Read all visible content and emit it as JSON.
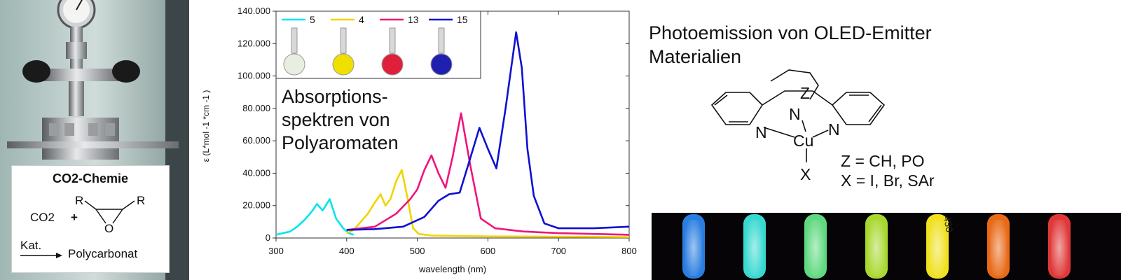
{
  "co2_panel": {
    "title": "CO2-Chemie",
    "reactant": "CO2",
    "plus": "+",
    "substituent_left": "R",
    "substituent_right": "R",
    "ring_atom": "O",
    "catalyst": "Kat.",
    "product": "Polycarbonat"
  },
  "absorption_note": "Absorptions-spektren von Polyaromaten",
  "oled": {
    "title": "Photoemission von OLED-Emitter Materialien",
    "atoms": {
      "n_left": "N",
      "n_center": "N",
      "n_right": "N",
      "metal": "Cu",
      "z": "Z",
      "x": "X"
    },
    "definitions": [
      "Z = CH, PO",
      "X = I, Br, SAr"
    ],
    "glow_colors": [
      "#2a7de0",
      "#38d8d0",
      "#60d880",
      "#a8d830",
      "#f0e020",
      "#e86a18",
      "#e03838"
    ],
    "tube_label": "430"
  },
  "chart_data": {
    "type": "line",
    "xlabel": "wavelength (nm)",
    "ylabel": "ε (L*mol -1 *cm -1 )",
    "xlim": [
      300,
      800
    ],
    "ylim": [
      0,
      140000
    ],
    "x_ticks": [
      "300",
      "400",
      "500",
      "600",
      "700",
      "800"
    ],
    "y_ticks": [
      "0",
      "20.000",
      "40.000",
      "60.000",
      "80.000",
      "100.000",
      "120.000",
      "140.000"
    ],
    "legend_position": "top-left inset",
    "series": [
      {
        "name": "5",
        "color": "#00e5f0",
        "x": [
          300,
          320,
          330,
          340,
          350,
          358,
          366,
          376,
          385,
          395,
          403,
          410
        ],
        "y": [
          2000,
          4000,
          7000,
          11000,
          16000,
          21000,
          17000,
          24000,
          12000,
          6000,
          3000,
          2000
        ]
      },
      {
        "name": "4",
        "color": "#f0d400",
        "x": [
          400,
          410,
          420,
          430,
          440,
          448,
          455,
          462,
          470,
          478,
          486,
          494,
          502,
          520,
          600,
          700,
          800
        ],
        "y": [
          3000,
          5000,
          10000,
          15000,
          22000,
          27000,
          20000,
          24000,
          35000,
          42000,
          25000,
          6000,
          2500,
          1500,
          1000,
          800,
          600
        ]
      },
      {
        "name": "13",
        "color": "#f0147a",
        "x": [
          400,
          440,
          470,
          490,
          500,
          510,
          520,
          530,
          540,
          550,
          562,
          575,
          590,
          610,
          650,
          700,
          750,
          800
        ],
        "y": [
          5000,
          7000,
          15000,
          24000,
          30000,
          42000,
          51000,
          40000,
          31000,
          50000,
          77000,
          45000,
          12000,
          6000,
          4000,
          3000,
          2500,
          2000
        ]
      },
      {
        "name": "15",
        "color": "#1010d0",
        "x": [
          400,
          440,
          480,
          510,
          530,
          545,
          560,
          572,
          588,
          600,
          612,
          625,
          640,
          648,
          656,
          665,
          680,
          700,
          750,
          800
        ],
        "y": [
          5000,
          5500,
          7000,
          13000,
          23000,
          27000,
          28000,
          45000,
          68000,
          55000,
          43000,
          80000,
          127000,
          105000,
          55000,
          26000,
          9000,
          6000,
          6000,
          7000
        ]
      }
    ]
  }
}
